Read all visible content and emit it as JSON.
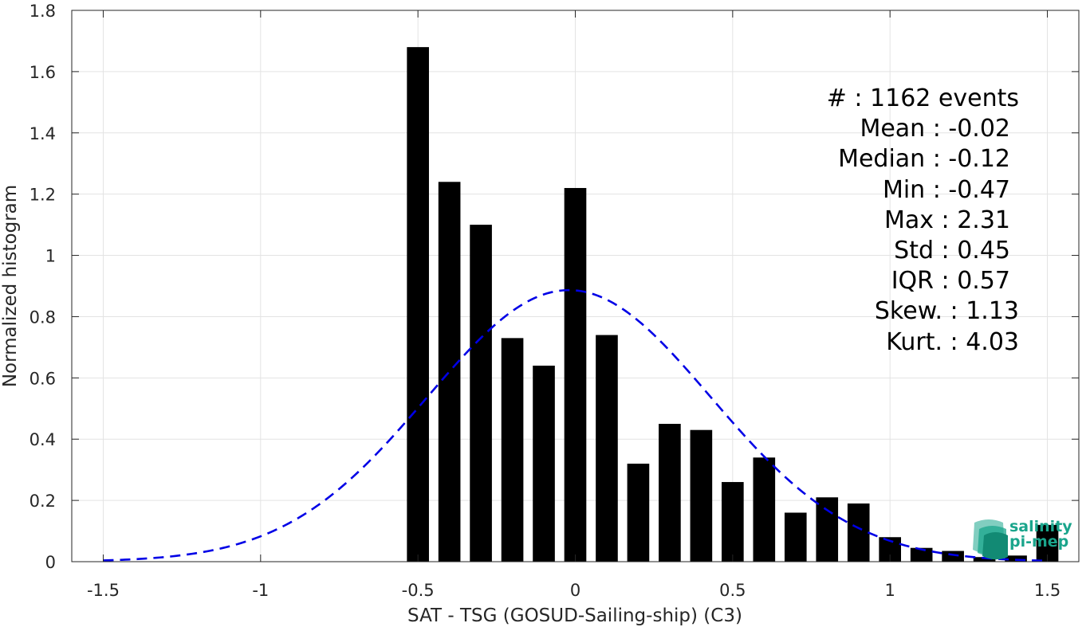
{
  "chart_data": {
    "type": "bar",
    "xlabel": "SAT - TSG (GOSUD-Sailing-ship) (C3)",
    "ylabel": "Normalized histogram",
    "xlim": [
      -1.6,
      1.6
    ],
    "ylim": [
      0,
      1.8
    ],
    "xticks": [
      -1.5,
      -1,
      -0.5,
      0,
      0.5,
      1,
      1.5
    ],
    "xtick_labels": [
      "-1.5",
      "-1",
      "-0.5",
      "0",
      "0.5",
      "1",
      "1.5"
    ],
    "yticks": [
      0,
      0.2,
      0.4,
      0.6,
      0.8,
      1,
      1.2,
      1.4,
      1.6,
      1.8
    ],
    "ytick_labels": [
      "0",
      "0.2",
      "0.4",
      "0.6",
      "0.8",
      "1",
      "1.2",
      "1.4",
      "1.6",
      "1.8"
    ],
    "grid": true,
    "bar_color": "#000000",
    "bar_width": 0.07,
    "bars": {
      "x": [
        -0.5,
        -0.4,
        -0.3,
        -0.2,
        -0.1,
        0.0,
        0.1,
        0.2,
        0.3,
        0.4,
        0.5,
        0.6,
        0.7,
        0.8,
        0.9,
        1.0,
        1.1,
        1.2,
        1.3,
        1.4,
        1.5
      ],
      "values": [
        1.68,
        1.24,
        1.1,
        0.73,
        0.64,
        1.22,
        0.74,
        0.32,
        0.45,
        0.43,
        0.26,
        0.34,
        0.16,
        0.21,
        0.19,
        0.08,
        0.045,
        0.035,
        0.015,
        0.02,
        0.12
      ]
    },
    "fit_curve": {
      "style": "dashed",
      "color": "#0000e6",
      "mean": -0.02,
      "std": 0.45,
      "x_range": [
        -1.5,
        1.5
      ]
    },
    "stats": [
      {
        "label": "#  : 1162 events"
      },
      {
        "label": "Mean : -0.02"
      },
      {
        "label": "Median : -0.12"
      },
      {
        "label": "Min : -0.47"
      },
      {
        "label": "Max : 2.31"
      },
      {
        "label": "Std : 0.45"
      },
      {
        "label": "IQR : 0.57"
      },
      {
        "label": "Skew. : 1.13"
      },
      {
        "label": "Kurt. : 4.03"
      }
    ]
  },
  "logo": {
    "line1": "salinity",
    "line2": "pi-mep",
    "color": "#1aa58c"
  }
}
